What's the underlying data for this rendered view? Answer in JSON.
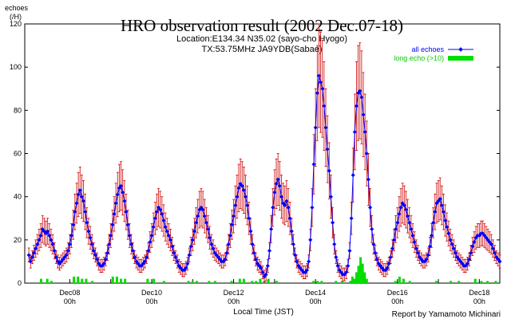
{
  "chart_data": {
    "type": "line",
    "title": "HRO observation result (2002 Dec.07-18)",
    "subtitle_lines": [
      "Location:E134.34 N35.02 (sayo-cho Hyogo)",
      "TX:53.75MHz JA9YDB(Sabae)"
    ],
    "ylabel_lines": [
      "echoes",
      "(/H)"
    ],
    "xlabel": "Local Time (JST)",
    "credit": "Report by Yamamoto Michinari",
    "ylim": [
      0,
      120
    ],
    "yticks": [
      0,
      20,
      40,
      60,
      80,
      100,
      120
    ],
    "x_start_day": 6.9,
    "x_end_day": 18.5,
    "x_tick_days": [
      8,
      9,
      10,
      11,
      12,
      13,
      14,
      15,
      16,
      17,
      18
    ],
    "x_labeled_days": [
      8,
      10,
      12,
      14,
      16,
      18
    ],
    "x_tick_labels": [
      [
        "Dec08",
        "00h"
      ],
      [
        "Dec10",
        "00h"
      ],
      [
        "Dec12",
        "00h"
      ],
      [
        "Dec14",
        "00h"
      ],
      [
        "Dec16",
        "00h"
      ],
      [
        "Dec18",
        "00h"
      ]
    ],
    "legend_position": "top-right",
    "colors": {
      "all_echoes": "#0000ff",
      "error_bars": "#cc0000",
      "long_echo": "#00dd00",
      "axis": "#000000",
      "title_text": "#000000"
    },
    "series": [
      {
        "name": "all echoes",
        "style": "line-with-markers-and-error-bars",
        "error_fraction": 0.25,
        "daily": [
          {
            "day": 7,
            "levels": [
              13,
              10,
              12,
              14,
              16,
              18,
              20,
              22,
              25,
              24,
              23,
              24,
              22,
              20,
              18,
              15,
              12,
              10,
              9,
              10,
              11,
              12,
              13,
              15
            ]
          },
          {
            "day": 8,
            "levels": [
              18,
              22,
              27,
              33,
              37,
              41,
              43,
              40,
              38,
              33,
              28,
              24,
              21,
              18,
              15,
              13,
              11,
              9,
              8,
              8,
              9,
              11,
              14,
              18
            ]
          },
          {
            "day": 9,
            "levels": [
              22,
              27,
              32,
              37,
              41,
              44,
              45,
              42,
              38,
              33,
              27,
              22,
              18,
              15,
              12,
              10,
              9,
              8,
              8,
              9,
              10,
              12,
              15,
              19
            ]
          },
          {
            "day": 10,
            "levels": [
              22,
              26,
              30,
              33,
              35,
              34,
              32,
              29,
              26,
              24,
              22,
              20,
              17,
              14,
              12,
              10,
              8,
              7,
              6,
              6,
              7,
              9,
              13,
              17
            ]
          },
          {
            "day": 11,
            "levels": [
              20,
              24,
              28,
              31,
              34,
              35,
              34,
              31,
              28,
              25,
              21,
              18,
              16,
              14,
              13,
              12,
              11,
              10,
              10,
              11,
              14,
              18,
              22,
              27
            ]
          },
          {
            "day": 12,
            "levels": [
              31,
              36,
              40,
              44,
              46,
              45,
              43,
              40,
              36,
              30,
              24,
              18,
              14,
              11,
              9,
              8,
              7,
              5,
              3,
              4,
              8,
              15,
              25,
              35
            ]
          },
          {
            "day": 13,
            "levels": [
              42,
              46,
              48,
              45,
              40,
              37,
              36,
              38,
              35,
              30,
              24,
              18,
              13,
              10,
              8,
              7,
              6,
              5,
              5,
              6,
              10,
              20,
              35,
              55
            ]
          },
          {
            "day": 14,
            "levels": [
              72,
              88,
              96,
              93,
              90,
              82,
              72,
              62,
              52,
              40,
              28,
              18,
              12,
              8,
              6,
              5,
              4,
              4,
              5,
              8,
              15,
              30,
              50,
              70
            ]
          },
          {
            "day": 15,
            "levels": [
              82,
              88,
              89,
              86,
              78,
              70,
              60,
              48,
              35,
              25,
              18,
              14,
              11,
              9,
              8,
              7,
              6,
              6,
              7,
              9,
              12,
              16,
              20,
              25
            ]
          },
          {
            "day": 16,
            "levels": [
              28,
              32,
              35,
              37,
              36,
              34,
              31,
              28,
              25,
              22,
              19,
              16,
              14,
              12,
              11,
              10,
              10,
              11,
              13,
              17,
              22,
              28,
              33,
              37
            ]
          },
          {
            "day": 17,
            "levels": [
              38,
              39,
              36,
              33,
              29,
              26,
              23,
              20,
              18,
              16,
              14,
              12,
              11,
              10,
              9,
              8,
              8,
              9,
              11,
              14,
              17,
              19,
              21,
              22
            ]
          },
          {
            "day": 18,
            "levels": [
              22,
              23,
              23,
              22,
              21,
              20,
              19,
              18,
              16,
              14,
              12,
              11,
              10,
              10,
              11,
              13,
              15,
              17,
              18,
              19,
              20,
              20,
              20,
              20
            ]
          }
        ]
      },
      {
        "name": "long echo (>10)",
        "style": "bars",
        "points": [
          {
            "x": 7.3,
            "y": 2
          },
          {
            "x": 7.45,
            "y": 2
          },
          {
            "x": 7.55,
            "y": 1
          },
          {
            "x": 8.1,
            "y": 3
          },
          {
            "x": 8.2,
            "y": 3
          },
          {
            "x": 8.3,
            "y": 2
          },
          {
            "x": 8.4,
            "y": 2
          },
          {
            "x": 8.55,
            "y": 1
          },
          {
            "x": 9.05,
            "y": 3
          },
          {
            "x": 9.15,
            "y": 3
          },
          {
            "x": 9.25,
            "y": 2
          },
          {
            "x": 9.35,
            "y": 2
          },
          {
            "x": 9.9,
            "y": 2
          },
          {
            "x": 10.05,
            "y": 2
          },
          {
            "x": 10.3,
            "y": 1
          },
          {
            "x": 10.9,
            "y": 1
          },
          {
            "x": 11.0,
            "y": 1
          },
          {
            "x": 11.1,
            "y": 1
          },
          {
            "x": 11.4,
            "y": 1
          },
          {
            "x": 11.55,
            "y": 1
          },
          {
            "x": 11.95,
            "y": 1
          },
          {
            "x": 12.15,
            "y": 2
          },
          {
            "x": 12.25,
            "y": 2
          },
          {
            "x": 12.45,
            "y": 1
          },
          {
            "x": 12.55,
            "y": 1
          },
          {
            "x": 12.65,
            "y": 2
          },
          {
            "x": 12.75,
            "y": 1
          },
          {
            "x": 12.85,
            "y": 2
          },
          {
            "x": 13.05,
            "y": 1
          },
          {
            "x": 13.95,
            "y": 1
          },
          {
            "x": 14.05,
            "y": 1
          },
          {
            "x": 14.15,
            "y": 1
          },
          {
            "x": 14.5,
            "y": 1
          },
          {
            "x": 14.65,
            "y": 1
          },
          {
            "x": 14.85,
            "y": 1
          },
          {
            "x": 14.9,
            "y": 3
          },
          {
            "x": 14.95,
            "y": 2
          },
          {
            "x": 15.0,
            "y": 5
          },
          {
            "x": 15.05,
            "y": 8
          },
          {
            "x": 15.1,
            "y": 12
          },
          {
            "x": 15.15,
            "y": 9
          },
          {
            "x": 15.2,
            "y": 5
          },
          {
            "x": 15.25,
            "y": 2
          },
          {
            "x": 15.95,
            "y": 1
          },
          {
            "x": 16.05,
            "y": 3
          },
          {
            "x": 16.15,
            "y": 2
          },
          {
            "x": 16.3,
            "y": 1
          },
          {
            "x": 16.95,
            "y": 1
          },
          {
            "x": 17.3,
            "y": 1
          },
          {
            "x": 17.5,
            "y": 1
          },
          {
            "x": 17.9,
            "y": 2
          },
          {
            "x": 18.05,
            "y": 1
          },
          {
            "x": 18.2,
            "y": 1
          },
          {
            "x": 18.4,
            "y": 1
          }
        ]
      }
    ]
  }
}
